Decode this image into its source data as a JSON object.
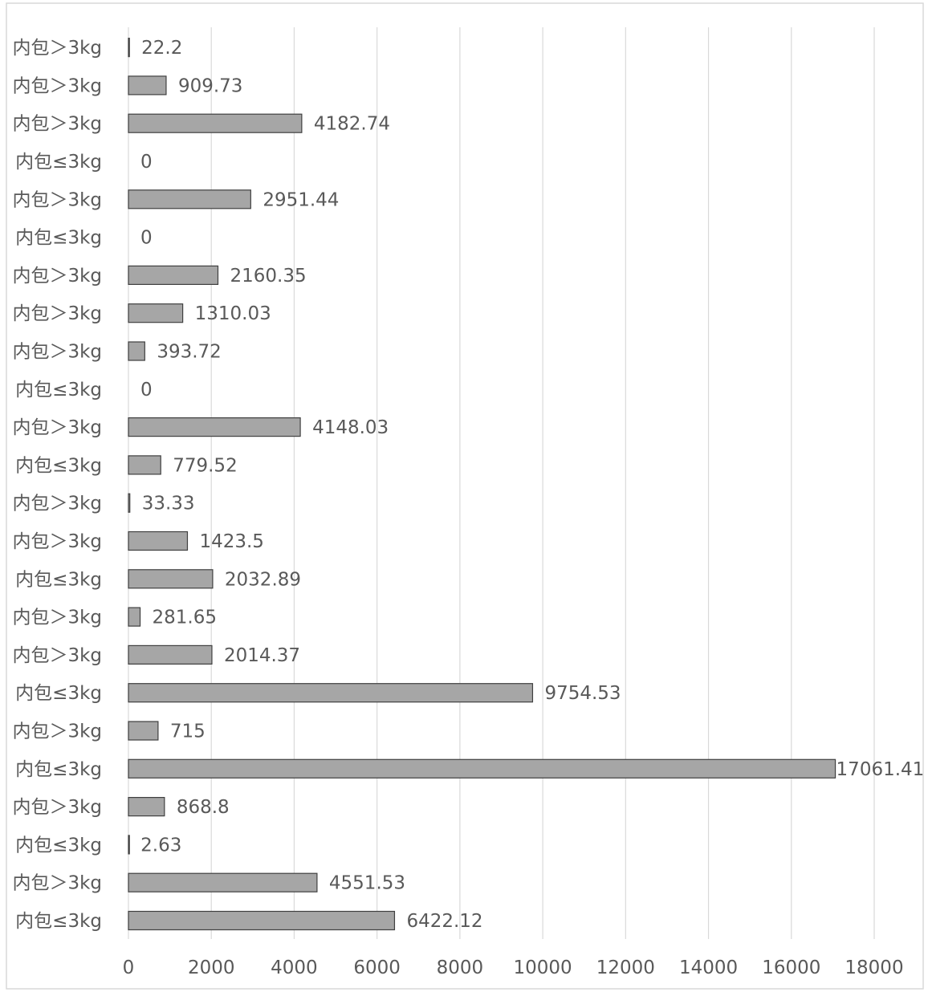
{
  "chart_data": {
    "type": "bar",
    "orientation": "horizontal",
    "categories": [
      "内包≤3kg",
      "内包＞3kg",
      "内包≤3kg",
      "内包＞3kg",
      "内包≤3kg",
      "内包＞3kg",
      "内包≤3kg",
      "内包＞3kg",
      "内包＞3kg",
      "内包≤3kg",
      "内包＞3kg",
      "内包＞3kg",
      "内包≤3kg",
      "内包＞3kg",
      "内包≤3kg",
      "内包＞3kg",
      "内包＞3kg",
      "内包＞3kg",
      "内包≤3kg",
      "内包＞3kg",
      "内包≤3kg",
      "内包＞3kg",
      "内包＞3kg",
      "内包＞3kg"
    ],
    "values": [
      6422.12,
      4551.53,
      2.63,
      868.8,
      17061.41,
      715,
      9754.53,
      2014.37,
      281.65,
      2032.89,
      1423.5,
      33.33,
      779.52,
      4148.03,
      0,
      393.72,
      1310.03,
      2160.35,
      0,
      2951.44,
      0,
      4182.74,
      909.73,
      22.2
    ],
    "value_labels": [
      "6422.12",
      "4551.53",
      "2.63",
      "868.8",
      "17061.41",
      "715",
      "9754.53",
      "2014.37",
      "281.65",
      "2032.89",
      "1423.5",
      "33.33",
      "779.52",
      "4148.03",
      "0",
      "393.72",
      "1310.03",
      "2160.35",
      "0",
      "2951.44",
      "0",
      "4182.74",
      "909.73",
      "22.2"
    ],
    "xlim": [
      0,
      18000
    ],
    "x_ticks": [
      0,
      2000,
      4000,
      6000,
      8000,
      10000,
      12000,
      14000,
      16000,
      18000
    ],
    "x_tick_labels": [
      "0",
      "2000",
      "4000",
      "6000",
      "8000",
      "10000",
      "12000",
      "14000",
      "16000",
      "18000"
    ],
    "grid": true,
    "legend": "none",
    "title": "",
    "xlabel": "",
    "ylabel": "",
    "colors": {
      "bar_fill": "#a6a6a6",
      "bar_edge": "#404040",
      "grid": "#d9d9d9",
      "text": "#595959"
    }
  }
}
